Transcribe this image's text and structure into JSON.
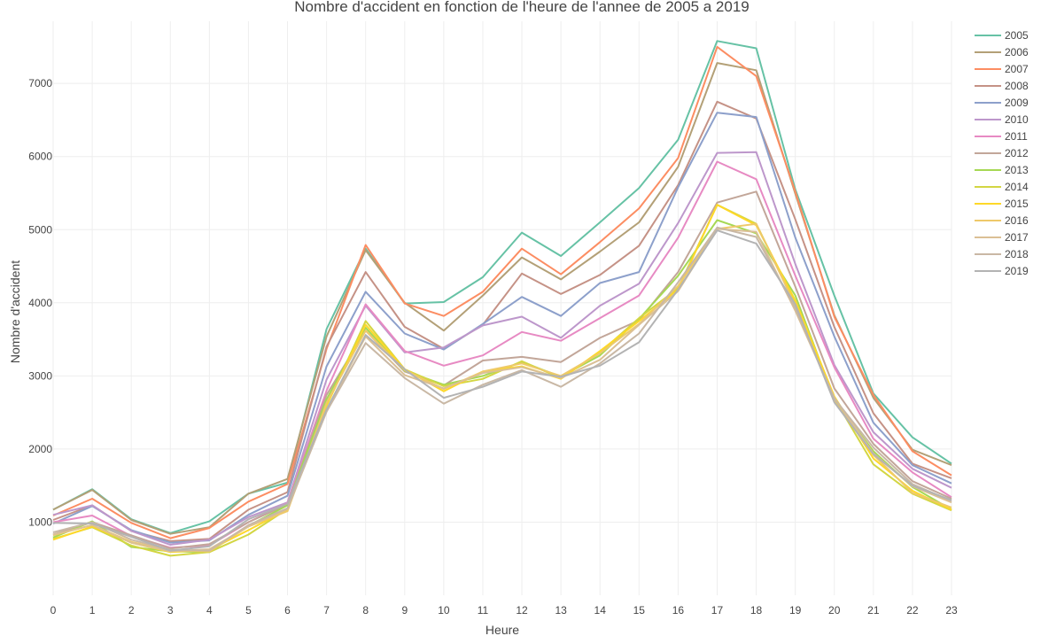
{
  "chart_data": {
    "type": "line",
    "title": "Nombre d'accident en fonction de l'heure de l'annee de 2005 a 2019",
    "xlabel": "Heure",
    "ylabel": "Nombre d'accident",
    "x": [
      0,
      1,
      2,
      3,
      4,
      5,
      6,
      7,
      8,
      9,
      10,
      11,
      12,
      13,
      14,
      15,
      16,
      17,
      18,
      19,
      20,
      21,
      22,
      23
    ],
    "xticks": [
      "0",
      "1",
      "2",
      "3",
      "4",
      "5",
      "6",
      "7",
      "8",
      "9",
      "10",
      "11",
      "12",
      "13",
      "14",
      "15",
      "16",
      "17",
      "18",
      "19",
      "20",
      "21",
      "22",
      "23"
    ],
    "yticks": [
      1000,
      2000,
      3000,
      4000,
      5000,
      6000,
      7000
    ],
    "ytick_labels": [
      "1000",
      "2000",
      "3000",
      "4000",
      "5000",
      "6000",
      "7000"
    ],
    "xlim": [
      0,
      23
    ],
    "ylim": [
      0,
      7850
    ],
    "grid": true,
    "legend_position": "right",
    "series": [
      {
        "name": "2005",
        "color": "#66c2a5",
        "values": [
          1170,
          1450,
          1040,
          850,
          1010,
          1390,
          1540,
          3640,
          4740,
          3990,
          4010,
          4350,
          4960,
          4640,
          5100,
          5570,
          6230,
          7580,
          7480,
          5550,
          4100,
          2760,
          2160,
          1800
        ]
      },
      {
        "name": "2006",
        "color": "#b3a077",
        "values": [
          1170,
          1440,
          1030,
          840,
          930,
          1390,
          1590,
          3540,
          4720,
          4000,
          3620,
          4100,
          4620,
          4320,
          4700,
          5100,
          5860,
          7280,
          7180,
          5490,
          3830,
          2700,
          1990,
          1780
        ]
      },
      {
        "name": "2007",
        "color": "#fc8d62",
        "values": [
          1090,
          1320,
          990,
          780,
          920,
          1280,
          1520,
          3370,
          4790,
          3990,
          3820,
          4150,
          4740,
          4390,
          4830,
          5290,
          5980,
          7500,
          7100,
          5520,
          3810,
          2740,
          1970,
          1640
        ]
      },
      {
        "name": "2008",
        "color": "#c59286",
        "values": [
          1030,
          1230,
          880,
          740,
          770,
          1170,
          1410,
          3400,
          4420,
          3670,
          3370,
          3700,
          4400,
          4120,
          4380,
          4780,
          5610,
          6750,
          6520,
          5140,
          3670,
          2490,
          1800,
          1600
        ]
      },
      {
        "name": "2009",
        "color": "#8da0cb",
        "values": [
          980,
          1220,
          890,
          720,
          750,
          1100,
          1360,
          3130,
          4150,
          3580,
          3360,
          3710,
          4080,
          3820,
          4270,
          4420,
          5580,
          6600,
          6540,
          4890,
          3540,
          2360,
          1780,
          1530
        ]
      },
      {
        "name": "2010",
        "color": "#bd97cb",
        "values": [
          1100,
          1230,
          880,
          690,
          760,
          1070,
          1270,
          2950,
          3960,
          3320,
          3390,
          3690,
          3810,
          3520,
          3960,
          4260,
          5090,
          6050,
          6060,
          4530,
          3150,
          2230,
          1730,
          1470
        ]
      },
      {
        "name": "2011",
        "color": "#e78ac3",
        "values": [
          1000,
          1090,
          810,
          650,
          680,
          1000,
          1260,
          2800,
          3980,
          3340,
          3140,
          3280,
          3600,
          3480,
          3790,
          4100,
          4890,
          5930,
          5690,
          4370,
          3120,
          2140,
          1680,
          1340
        ]
      },
      {
        "name": "2012",
        "color": "#c2a699",
        "values": [
          830,
          1000,
          820,
          640,
          700,
          1000,
          1240,
          2740,
          3620,
          3060,
          2870,
          3210,
          3260,
          3190,
          3520,
          3760,
          4420,
          5370,
          5520,
          4220,
          2830,
          2070,
          1560,
          1320
        ]
      },
      {
        "name": "2013",
        "color": "#a6d854",
        "values": [
          790,
          1010,
          660,
          600,
          590,
          950,
          1230,
          2680,
          3660,
          3070,
          2880,
          3000,
          3190,
          2990,
          3280,
          3780,
          4370,
          5130,
          4950,
          4100,
          2680,
          1970,
          1480,
          1170
        ]
      },
      {
        "name": "2014",
        "color": "#d3d643",
        "values": [
          770,
          930,
          680,
          540,
          590,
          830,
          1180,
          2590,
          3750,
          3090,
          2860,
          2960,
          3200,
          2970,
          3320,
          3790,
          4200,
          5340,
          5080,
          3990,
          2690,
          1790,
          1390,
          1160
        ]
      },
      {
        "name": "2015",
        "color": "#fed829",
        "values": [
          760,
          940,
          720,
          590,
          620,
          890,
          1170,
          2600,
          3700,
          3090,
          2790,
          3060,
          3130,
          2960,
          3340,
          3750,
          4180,
          5340,
          5060,
          4030,
          2720,
          1870,
          1430,
          1170
        ]
      },
      {
        "name": "2016",
        "color": "#eec96a",
        "values": [
          820,
          960,
          730,
          610,
          600,
          940,
          1150,
          2630,
          3620,
          3080,
          2820,
          3060,
          3170,
          3000,
          3310,
          3710,
          4230,
          5010,
          5080,
          3960,
          2650,
          1920,
          1400,
          1200
        ]
      },
      {
        "name": "2017",
        "color": "#dbc095",
        "values": [
          830,
          960,
          720,
          600,
          630,
          940,
          1180,
          2520,
          3540,
          3010,
          2830,
          3040,
          3120,
          2970,
          3220,
          3700,
          4160,
          5010,
          4970,
          3890,
          2700,
          1940,
          1490,
          1270
        ]
      },
      {
        "name": "2018",
        "color": "#c9b8a5",
        "values": [
          860,
          1000,
          760,
          620,
          610,
          960,
          1190,
          2510,
          3450,
          2970,
          2620,
          2880,
          3080,
          2850,
          3170,
          3580,
          4280,
          5030,
          4900,
          3920,
          2690,
          2020,
          1520,
          1290
        ]
      },
      {
        "name": "2019",
        "color": "#b3b3b3",
        "values": [
          990,
          980,
          800,
          610,
          670,
          1040,
          1250,
          2540,
          3560,
          3090,
          2700,
          2850,
          3060,
          2990,
          3140,
          3460,
          4180,
          4990,
          4810,
          3980,
          2640,
          1930,
          1500,
          1300
        ]
      }
    ]
  }
}
